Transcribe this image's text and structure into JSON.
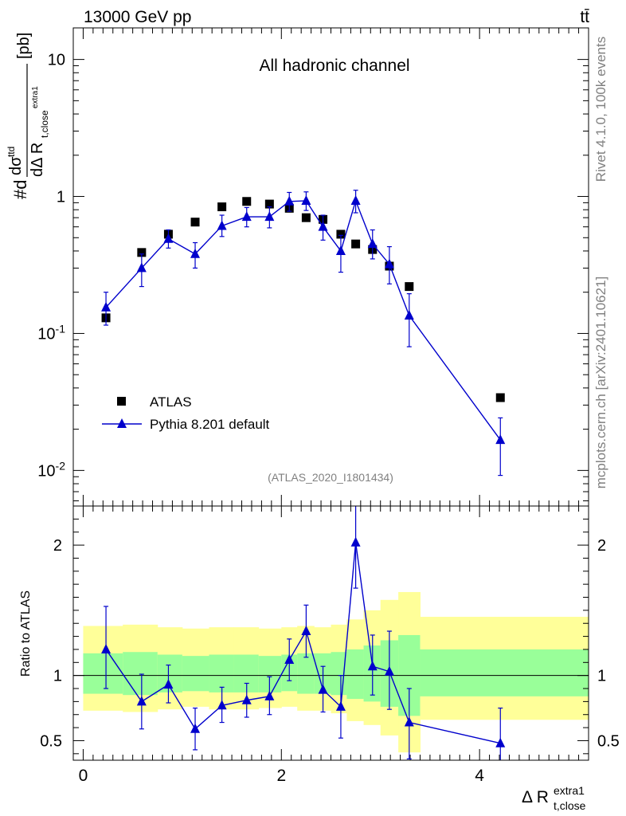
{
  "header": {
    "energy_label": "13000 GeV pp",
    "process_label": "tt̄"
  },
  "side_labels": {
    "rivet": "Rivet 4.1.0,  100k events",
    "mcplots": "mcplots.cern.ch [arXiv:2401.10621]"
  },
  "chart_data": [
    {
      "panel": "main",
      "type": "scatter",
      "title": "All hadronic channel",
      "analysis_id": "(ATLAS_2020_I1801434)",
      "ylabel": "#d dσ^ttd / dΔ R_t,close^extra1 [pb]",
      "yscale": "log",
      "ylim": [
        0.0055,
        17
      ],
      "xlim": [
        -0.1,
        5.1
      ],
      "y_tick_labels": [
        "10^-2",
        "10^-1",
        "1",
        "10"
      ],
      "legend": {
        "position": "bottom-left",
        "entries": [
          "ATLAS",
          "Pythia 8.201 default"
        ]
      },
      "series": [
        {
          "name": "ATLAS",
          "marker": "square",
          "color": "#000000",
          "x": [
            0.23,
            0.59,
            0.86,
            1.13,
            1.4,
            1.65,
            1.88,
            2.08,
            2.25,
            2.42,
            2.6,
            2.75,
            2.92,
            3.09,
            3.29,
            4.21
          ],
          "values": [
            0.13,
            0.39,
            0.53,
            0.65,
            0.84,
            0.92,
            0.88,
            0.82,
            0.7,
            0.68,
            0.53,
            0.45,
            0.41,
            0.31,
            0.22,
            0.034
          ]
        },
        {
          "name": "Pythia 8.201 default",
          "marker": "triangle",
          "color": "#0000cc",
          "x": [
            0.23,
            0.59,
            0.86,
            1.13,
            1.4,
            1.65,
            1.88,
            2.08,
            2.25,
            2.42,
            2.6,
            2.75,
            2.92,
            3.09,
            3.29,
            4.21
          ],
          "values": [
            0.155,
            0.3,
            0.49,
            0.38,
            0.61,
            0.71,
            0.71,
            0.92,
            0.93,
            0.6,
            0.4,
            0.93,
            0.45,
            0.32,
            0.135,
            0.0167
          ],
          "err_low": [
            0.04,
            0.08,
            0.07,
            0.08,
            0.1,
            0.11,
            0.12,
            0.14,
            0.14,
            0.12,
            0.12,
            0.17,
            0.1,
            0.09,
            0.055,
            0.0075
          ],
          "err_high": [
            0.045,
            0.08,
            0.08,
            0.08,
            0.12,
            0.12,
            0.13,
            0.15,
            0.15,
            0.13,
            0.12,
            0.18,
            0.12,
            0.11,
            0.06,
            0.0075
          ]
        }
      ]
    },
    {
      "panel": "ratio",
      "type": "scatter",
      "ylabel": "Ratio to ATLAS",
      "xlabel": "Δ R_t,close^extra1",
      "ylim": [
        0.35,
        2.3
      ],
      "xlim": [
        -0.1,
        5.1
      ],
      "x_tick_labels": [
        "0",
        "2",
        "4"
      ],
      "y_tick_labels": [
        "0.5",
        "1",
        "2"
      ],
      "bands": {
        "edges": [
          0.0,
          0.4,
          0.75,
          1.0,
          1.27,
          1.52,
          1.77,
          2.0,
          2.16,
          2.33,
          2.5,
          2.66,
          2.83,
          3.0,
          3.18,
          3.4,
          5.1
        ],
        "yellow_low": [
          0.73,
          0.72,
          0.74,
          0.76,
          0.74,
          0.74,
          0.75,
          0.76,
          0.73,
          0.73,
          0.71,
          0.65,
          0.62,
          0.54,
          0.41,
          0.66
        ],
        "yellow_high": [
          1.38,
          1.39,
          1.37,
          1.36,
          1.37,
          1.37,
          1.36,
          1.37,
          1.38,
          1.37,
          1.39,
          1.43,
          1.5,
          1.58,
          1.64,
          1.45
        ],
        "green_low": [
          0.86,
          0.85,
          0.87,
          0.88,
          0.87,
          0.87,
          0.87,
          0.88,
          0.86,
          0.86,
          0.85,
          0.82,
          0.8,
          0.76,
          0.69,
          0.84
        ],
        "green_high": [
          1.17,
          1.18,
          1.16,
          1.15,
          1.16,
          1.16,
          1.15,
          1.16,
          1.17,
          1.17,
          1.18,
          1.2,
          1.23,
          1.27,
          1.31,
          1.2
        ]
      },
      "series": [
        {
          "name": "Pythia 8.201 default / ATLAS",
          "marker": "triangle",
          "color": "#0000cc",
          "x": [
            0.23,
            0.59,
            0.86,
            1.13,
            1.4,
            1.65,
            1.88,
            2.08,
            2.25,
            2.42,
            2.6,
            2.75,
            2.92,
            3.09,
            3.29,
            4.21
          ],
          "values": [
            1.2,
            0.8,
            0.93,
            0.59,
            0.77,
            0.81,
            0.84,
            1.12,
            1.34,
            0.89,
            0.76,
            2.02,
            1.07,
            1.03,
            0.64,
            0.48
          ],
          "err_low": [
            0.3,
            0.21,
            0.14,
            0.16,
            0.13,
            0.13,
            0.14,
            0.16,
            0.2,
            0.17,
            0.24,
            0.35,
            0.22,
            0.29,
            0.28,
            0.22
          ],
          "err_high": [
            0.33,
            0.21,
            0.15,
            0.16,
            0.14,
            0.13,
            0.15,
            0.16,
            0.2,
            0.18,
            0.24,
            0.36,
            0.24,
            0.31,
            0.26,
            0.27
          ]
        }
      ]
    }
  ]
}
